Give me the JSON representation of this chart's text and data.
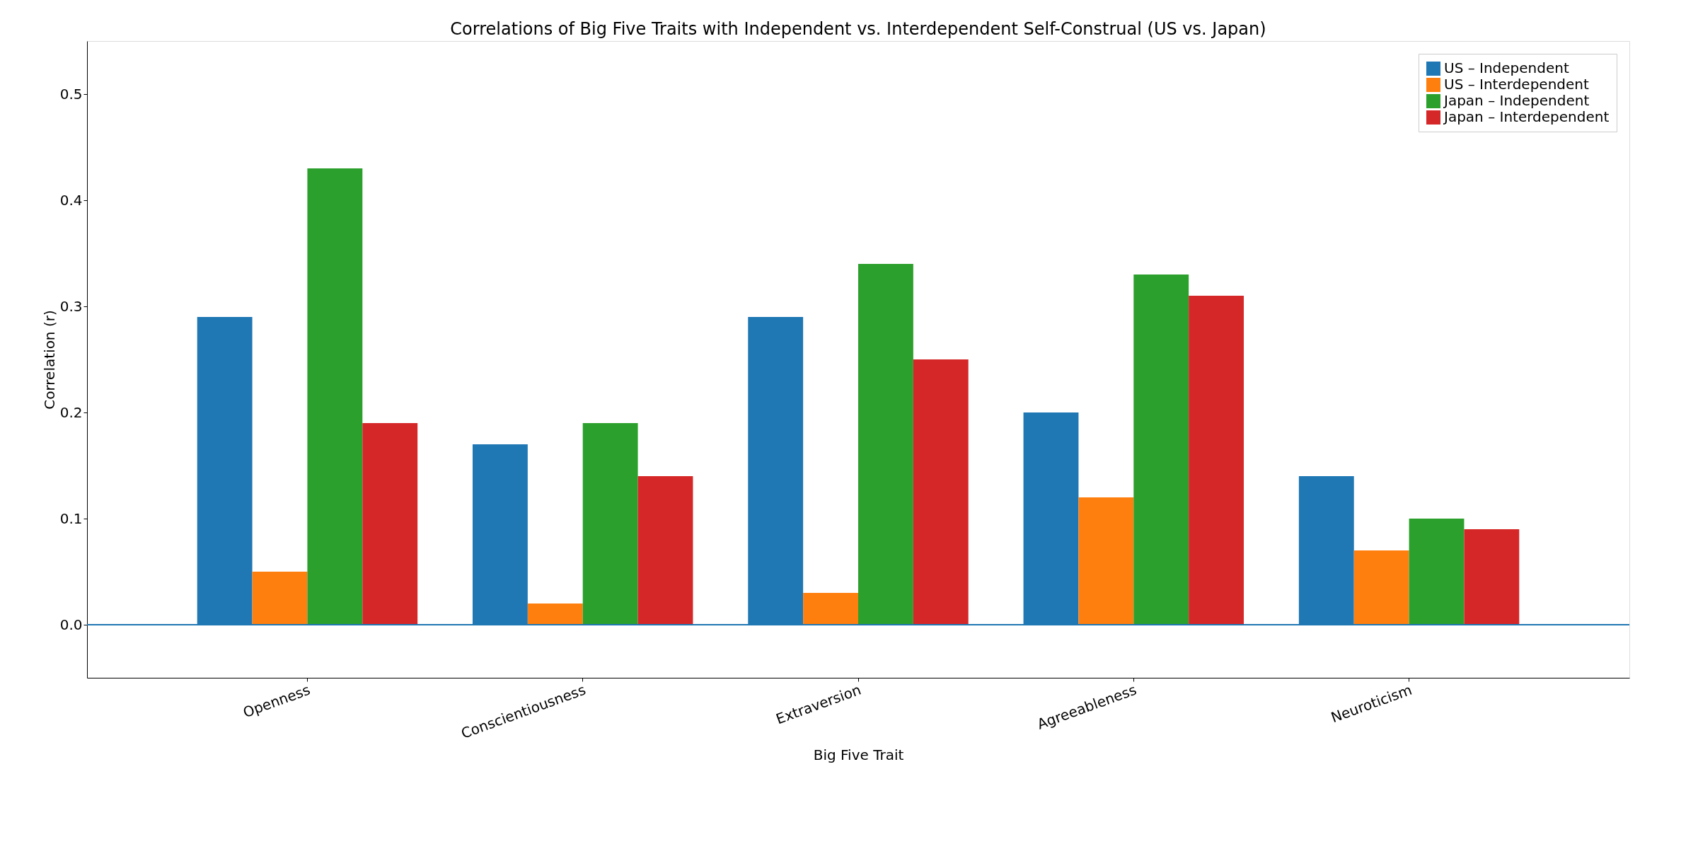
{
  "chart_data": {
    "type": "bar",
    "title": "Correlations of Big Five Traits with Independent vs. Interdependent Self-Construal (US vs. Japan)",
    "xlabel": "Big Five Trait",
    "ylabel": "Correlation (r)",
    "categories": [
      "Openness",
      "Conscientiousness",
      "Extraversion",
      "Agreeableness",
      "Neuroticism"
    ],
    "series": [
      {
        "name": "US – Independent",
        "color": "#1f77b4",
        "values": [
          0.29,
          0.17,
          0.29,
          0.2,
          0.14
        ]
      },
      {
        "name": "US – Interdependent",
        "color": "#ff7f0e",
        "values": [
          0.05,
          0.02,
          0.03,
          0.12,
          0.07
        ]
      },
      {
        "name": "Japan – Independent",
        "color": "#2ca02c",
        "values": [
          0.43,
          0.19,
          0.34,
          0.33,
          0.1
        ]
      },
      {
        "name": "Japan – Interdependent",
        "color": "#d62728",
        "values": [
          0.19,
          0.14,
          0.25,
          0.31,
          0.09
        ]
      }
    ],
    "ylim": [
      -0.05,
      0.55
    ],
    "yticks": [
      {
        "value": 0,
        "label": "0.0"
      },
      0.1,
      0.2,
      0.3,
      0.4,
      0.5
    ],
    "ref_lines": [
      {
        "axis": "y",
        "value": 0,
        "color": "#1f77b4"
      }
    ],
    "legend": "top right",
    "grid": false
  }
}
